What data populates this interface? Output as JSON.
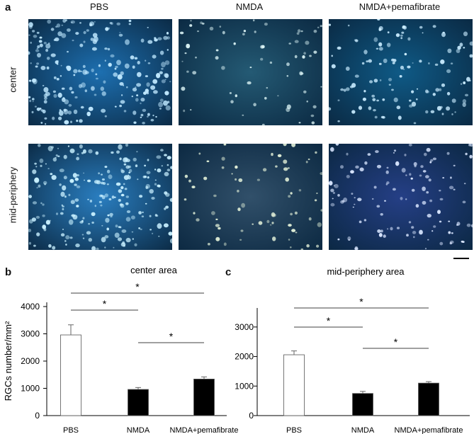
{
  "panel_a": {
    "letter": "a",
    "columns": [
      "PBS",
      "NMDA",
      "NMDA+pemafibrate"
    ],
    "rows": [
      "center",
      "mid-periphery"
    ],
    "images": [
      {
        "row": "center",
        "column": "PBS",
        "background": "#1d6fb0",
        "cell_color": "#bfe8ff",
        "density": "high"
      },
      {
        "row": "center",
        "column": "NMDA",
        "background": "#245a74",
        "cell_color": "#d7f0f2",
        "density": "low"
      },
      {
        "row": "center",
        "column": "NMDA+pemafibrate",
        "background": "#0f5a86",
        "cell_color": "#c9ecff",
        "density": "medium"
      },
      {
        "row": "mid-periphery",
        "column": "PBS",
        "background": "#2a7ec0",
        "cell_color": "#c8f0ff",
        "density": "high"
      },
      {
        "row": "mid-periphery",
        "column": "NMDA",
        "background": "#31506a",
        "cell_color": "#e0eed6",
        "density": "low"
      },
      {
        "row": "mid-periphery",
        "column": "NMDA+pemafibrate",
        "background": "#253f86",
        "cell_color": "#d9e6ff",
        "density": "medium"
      }
    ]
  },
  "panel_b": {
    "letter": "b"
  },
  "panel_c": {
    "letter": "c"
  },
  "chart_data": [
    {
      "type": "bar",
      "title": "center area",
      "ylabel": "RGCs number/mm²",
      "categories": [
        "PBS",
        "NMDA",
        "NMDA+pemafibrate"
      ],
      "values": [
        2960,
        960,
        1340
      ],
      "errors": [
        370,
        70,
        80
      ],
      "bar_fills": [
        "#ffffff",
        "#000000",
        "#000000"
      ],
      "ylim": [
        0,
        4000
      ],
      "yticks": [
        0,
        1000,
        2000,
        3000,
        4000
      ],
      "significance": [
        {
          "from": 0,
          "to": 1,
          "label": "*"
        },
        {
          "from": 1,
          "to": 2,
          "label": "*"
        },
        {
          "from": 0,
          "to": 2,
          "label": "*"
        }
      ]
    },
    {
      "type": "bar",
      "title": "mid-periphery area",
      "ylabel": "",
      "categories": [
        "PBS",
        "NMDA",
        "NMDA+pemafibrate"
      ],
      "values": [
        2060,
        750,
        1100
      ],
      "errors": [
        130,
        70,
        50
      ],
      "bar_fills": [
        "#ffffff",
        "#000000",
        "#000000"
      ],
      "ylim": [
        0,
        3500
      ],
      "yticks": [
        0,
        1000,
        2000,
        3000
      ],
      "significance": [
        {
          "from": 0,
          "to": 1,
          "label": "*"
        },
        {
          "from": 1,
          "to": 2,
          "label": "*"
        },
        {
          "from": 0,
          "to": 2,
          "label": "*"
        }
      ]
    }
  ]
}
